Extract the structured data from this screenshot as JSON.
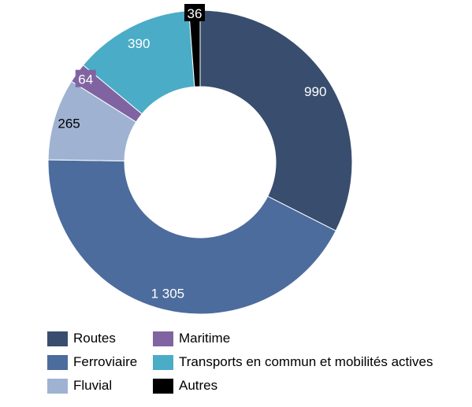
{
  "chart_data": {
    "type": "pie",
    "variant": "donut",
    "title": "",
    "categories": [
      "Routes",
      "Ferroviaire",
      "Fluvial",
      "Maritime",
      "Transports en commun et mobilités actives",
      "Autres"
    ],
    "values": [
      990,
      1305,
      265,
      64,
      390,
      36
    ],
    "value_labels": [
      "990",
      "1 305",
      "265",
      "64",
      "390",
      "36"
    ],
    "colors": [
      "#394d6e",
      "#4c6c9d",
      "#9fb2d2",
      "#8064a2",
      "#4aacc6",
      "#000000"
    ],
    "label_colors": [
      "#ffffff",
      "#ffffff",
      "#000000",
      "#ffffff",
      "#ffffff",
      "#ffffff"
    ],
    "start_angle_deg": 0,
    "direction": "clockwise",
    "legend_position": "bottom"
  },
  "legend": [
    {
      "label": "Routes",
      "color": "#394d6e"
    },
    {
      "label": "Ferroviaire",
      "color": "#4c6c9d"
    },
    {
      "label": "Fluvial",
      "color": "#9fb2d2"
    },
    {
      "label": "Maritime",
      "color": "#8064a2"
    },
    {
      "label": "Transports en commun et mobilités actives",
      "color": "#4aacc6"
    },
    {
      "label": "Autres",
      "color": "#000000"
    }
  ]
}
